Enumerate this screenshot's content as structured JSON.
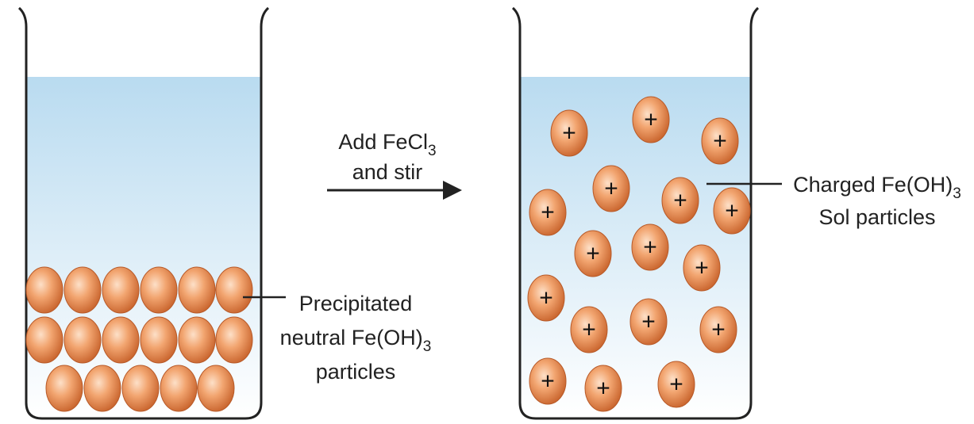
{
  "labels": {
    "reagent": {
      "text": "Add FeCl",
      "subscript": "3"
    },
    "action": "and stir",
    "left_label": {
      "line1": "Precipitated",
      "line2": {
        "text": "neutral Fe(OH)",
        "subscript": "3"
      },
      "line3": "particles"
    },
    "right_label": {
      "line1": {
        "text": "Charged Fe(OH)",
        "subscript": "3"
      },
      "line2": "Sol particles"
    },
    "particle_charge": "+"
  }
}
